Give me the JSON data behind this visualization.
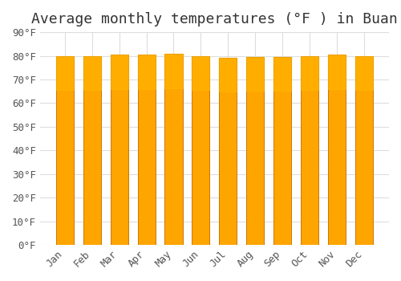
{
  "title": "Average monthly temperatures (°F ) in Buan",
  "months": [
    "Jan",
    "Feb",
    "Mar",
    "Apr",
    "May",
    "Jun",
    "Jul",
    "Aug",
    "Sep",
    "Oct",
    "Nov",
    "Dec"
  ],
  "values": [
    80,
    80,
    80.5,
    80.5,
    81,
    80,
    79,
    79.5,
    79.5,
    80,
    80.5,
    80
  ],
  "bar_color_main": "#FFA500",
  "bar_color_gradient_top": "#FFB700",
  "bar_color_gradient_bottom": "#FF8C00",
  "bar_edge_color": "#CC7700",
  "background_color": "#FFFFFF",
  "grid_color": "#DDDDDD",
  "title_fontsize": 13,
  "tick_fontsize": 9,
  "ylim": [
    0,
    90
  ],
  "yticks": [
    0,
    10,
    20,
    30,
    40,
    50,
    60,
    70,
    80,
    90
  ]
}
